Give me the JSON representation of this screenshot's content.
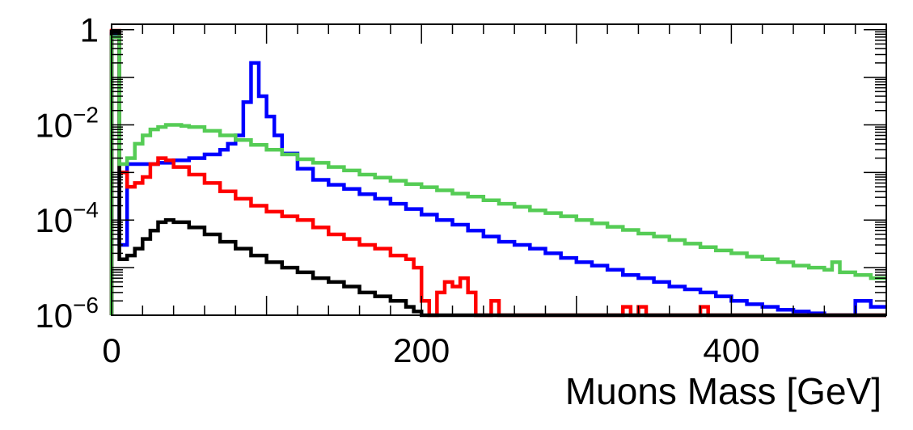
{
  "chart_data": {
    "type": "line",
    "title": "",
    "xlabel": "Muons Mass [GeV]",
    "ylabel": "",
    "xlim": [
      0,
      500
    ],
    "ylim": [
      1e-06,
      1.3
    ],
    "ylog": true,
    "grid": false,
    "legend": "none",
    "bin_width": 5,
    "x_tick_labels": [
      "0",
      "200",
      "400"
    ],
    "y_tick_labels": [
      {
        "base": "1",
        "exp": ""
      },
      {
        "base": "10",
        "exp": "−2"
      },
      {
        "base": "10",
        "exp": "−4"
      },
      {
        "base": "10",
        "exp": "−6"
      }
    ],
    "series": [
      {
        "color": "#0000ff",
        "points": [
          [
            0,
            0.9
          ],
          [
            1,
            0.8
          ],
          [
            5,
            3e-05
          ],
          [
            8,
            3e-05
          ],
          [
            10,
            0.0015
          ],
          [
            30,
            0.0016
          ],
          [
            40,
            0.0018
          ],
          [
            50,
            0.002
          ],
          [
            60,
            0.0024
          ],
          [
            70,
            0.003
          ],
          [
            75,
            0.004
          ],
          [
            80,
            0.006
          ],
          [
            85,
            0.03
          ],
          [
            88,
            0.12
          ],
          [
            91,
            0.2
          ],
          [
            94,
            0.15
          ],
          [
            97,
            0.04
          ],
          [
            100,
            0.015
          ],
          [
            105,
            0.006
          ],
          [
            110,
            0.0025
          ],
          [
            120,
            0.0012
          ],
          [
            130,
            0.0007
          ],
          [
            140,
            0.00055
          ],
          [
            150,
            0.00045
          ],
          [
            160,
            0.00035
          ],
          [
            170,
            0.00028
          ],
          [
            180,
            0.00022
          ],
          [
            190,
            0.00017
          ],
          [
            200,
            0.00013
          ],
          [
            210,
            0.0001
          ],
          [
            220,
            8e-05
          ],
          [
            230,
            6e-05
          ],
          [
            240,
            4.5e-05
          ],
          [
            250,
            3.5e-05
          ],
          [
            260,
            3e-05
          ],
          [
            270,
            2.5e-05
          ],
          [
            280,
            2e-05
          ],
          [
            290,
            1.6e-05
          ],
          [
            300,
            1.3e-05
          ],
          [
            310,
            1.1e-05
          ],
          [
            320,
            9e-06
          ],
          [
            330,
            7e-06
          ],
          [
            340,
            6e-06
          ],
          [
            350,
            5e-06
          ],
          [
            360,
            4e-06
          ],
          [
            370,
            3.5e-06
          ],
          [
            380,
            3e-06
          ],
          [
            390,
            2.5e-06
          ],
          [
            400,
            2e-06
          ],
          [
            410,
            1.7e-06
          ],
          [
            420,
            1.5e-06
          ],
          [
            430,
            1.3e-06
          ],
          [
            440,
            1.2e-06
          ],
          [
            450,
            1.1e-06
          ],
          [
            460,
            1e-06
          ],
          [
            470,
            1e-06
          ],
          [
            480,
            2e-06
          ],
          [
            490,
            1.5e-06
          ],
          [
            500,
            1.5e-06
          ]
        ]
      },
      {
        "color": "#ff0000",
        "points": [
          [
            0,
            1.0
          ],
          [
            1,
            0.95
          ],
          [
            5,
            0.001
          ],
          [
            8,
            0.001
          ],
          [
            10,
            0.0005
          ],
          [
            15,
            0.0006
          ],
          [
            20,
            0.0008
          ],
          [
            25,
            0.0015
          ],
          [
            30,
            0.002
          ],
          [
            35,
            0.0018
          ],
          [
            40,
            0.0013
          ],
          [
            50,
            0.0009
          ],
          [
            60,
            0.0006
          ],
          [
            70,
            0.0004
          ],
          [
            80,
            0.00028
          ],
          [
            90,
            0.0002
          ],
          [
            100,
            0.00015
          ],
          [
            110,
            0.00012
          ],
          [
            120,
            0.0001
          ],
          [
            130,
            7e-05
          ],
          [
            140,
            5e-05
          ],
          [
            150,
            4e-05
          ],
          [
            160,
            3e-05
          ],
          [
            170,
            2.5e-05
          ],
          [
            180,
            1.8e-05
          ],
          [
            190,
            1.5e-05
          ],
          [
            195,
            1e-05
          ],
          [
            200,
            2e-06
          ],
          [
            205,
            1e-06
          ],
          [
            210,
            3e-06
          ],
          [
            215,
            5e-06
          ],
          [
            220,
            4e-06
          ],
          [
            225,
            6e-06
          ],
          [
            230,
            3e-06
          ],
          [
            235,
            1e-06
          ],
          [
            240,
            1e-06
          ],
          [
            245,
            2e-06
          ],
          [
            250,
            1e-06
          ],
          [
            300,
            1e-06
          ],
          [
            320,
            1e-06
          ],
          [
            330,
            1.5e-06
          ],
          [
            335,
            1e-06
          ],
          [
            340,
            1.5e-06
          ],
          [
            345,
            1e-06
          ],
          [
            380,
            1.5e-06
          ],
          [
            385,
            1e-06
          ],
          [
            500,
            1e-06
          ]
        ]
      },
      {
        "color": "#000000",
        "points": [
          [
            0,
            1.0
          ],
          [
            1,
            0.9
          ],
          [
            5,
            1.5e-05
          ],
          [
            10,
            1.8e-05
          ],
          [
            15,
            2.5e-05
          ],
          [
            20,
            4e-05
          ],
          [
            25,
            6e-05
          ],
          [
            30,
            9e-05
          ],
          [
            35,
            0.0001
          ],
          [
            40,
            9e-05
          ],
          [
            50,
            7e-05
          ],
          [
            60,
            5e-05
          ],
          [
            70,
            3.5e-05
          ],
          [
            80,
            2.5e-05
          ],
          [
            90,
            1.8e-05
          ],
          [
            100,
            1.3e-05
          ],
          [
            110,
            1e-05
          ],
          [
            120,
            8e-06
          ],
          [
            130,
            6e-06
          ],
          [
            140,
            5e-06
          ],
          [
            150,
            4e-06
          ],
          [
            160,
            3e-06
          ],
          [
            170,
            2.5e-06
          ],
          [
            180,
            2e-06
          ],
          [
            190,
            1.5e-06
          ],
          [
            195,
            1.2e-06
          ],
          [
            200,
            1e-06
          ]
        ]
      },
      {
        "color": "#55cc55",
        "points": [
          [
            0,
            0.85
          ],
          [
            1,
            0.7
          ],
          [
            5,
            0.0015
          ],
          [
            10,
            0.002
          ],
          [
            15,
            0.004
          ],
          [
            20,
            0.006
          ],
          [
            25,
            0.008
          ],
          [
            30,
            0.009
          ],
          [
            35,
            0.01
          ],
          [
            40,
            0.01
          ],
          [
            45,
            0.0095
          ],
          [
            50,
            0.009
          ],
          [
            60,
            0.0075
          ],
          [
            70,
            0.006
          ],
          [
            80,
            0.0048
          ],
          [
            90,
            0.0038
          ],
          [
            100,
            0.003
          ],
          [
            110,
            0.0024
          ],
          [
            120,
            0.0019
          ],
          [
            130,
            0.0016
          ],
          [
            140,
            0.0013
          ],
          [
            150,
            0.0011
          ],
          [
            160,
            0.0009
          ],
          [
            170,
            0.00078
          ],
          [
            180,
            0.00067
          ],
          [
            190,
            0.00057
          ],
          [
            200,
            0.00049
          ],
          [
            210,
            0.00042
          ],
          [
            220,
            0.00036
          ],
          [
            230,
            0.00031
          ],
          [
            240,
            0.00026
          ],
          [
            250,
            0.00022
          ],
          [
            260,
            0.00019
          ],
          [
            270,
            0.00016
          ],
          [
            280,
            0.00014
          ],
          [
            290,
            0.00012
          ],
          [
            300,
            0.0001
          ],
          [
            310,
            8.5e-05
          ],
          [
            320,
            7.2e-05
          ],
          [
            330,
            6.2e-05
          ],
          [
            340,
            5.2e-05
          ],
          [
            350,
            4.5e-05
          ],
          [
            360,
            3.8e-05
          ],
          [
            370,
            3.2e-05
          ],
          [
            380,
            2.7e-05
          ],
          [
            390,
            2.3e-05
          ],
          [
            400,
            2e-05
          ],
          [
            410,
            1.7e-05
          ],
          [
            420,
            1.5e-05
          ],
          [
            430,
            1.3e-05
          ],
          [
            440,
            1.1e-05
          ],
          [
            450,
            1e-05
          ],
          [
            460,
            9e-06
          ],
          [
            465,
            1.3e-05
          ],
          [
            470,
            8e-06
          ],
          [
            480,
            7e-06
          ],
          [
            490,
            6e-06
          ],
          [
            500,
            6e-06
          ]
        ]
      }
    ]
  }
}
